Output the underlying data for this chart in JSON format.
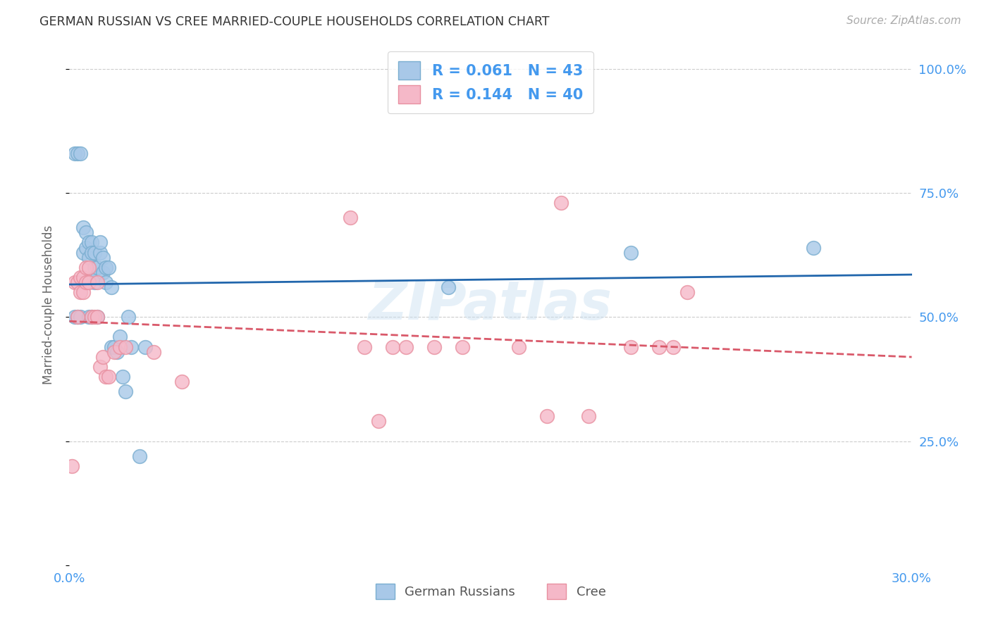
{
  "title": "GERMAN RUSSIAN VS CREE MARRIED-COUPLE HOUSEHOLDS CORRELATION CHART",
  "source": "Source: ZipAtlas.com",
  "ylabel": "Married-couple Households",
  "label_german": "German Russians",
  "label_cree": "Cree",
  "watermark": "ZIPatlas",
  "blue_scatter_color": "#a8c8e8",
  "blue_scatter_edge": "#7aaed0",
  "pink_scatter_color": "#f5b8c8",
  "pink_scatter_edge": "#e890a0",
  "blue_line_color": "#2166ac",
  "pink_line_color": "#d9596a",
  "background_color": "#ffffff",
  "grid_color": "#cccccc",
  "tick_color": "#4499ee",
  "legend_text_color": "#4499ee",
  "title_color": "#333333",
  "source_color": "#aaaaaa",
  "ylabel_color": "#666666",
  "blue_x": [
    0.002,
    0.003,
    0.004,
    0.005,
    0.005,
    0.006,
    0.006,
    0.007,
    0.007,
    0.008,
    0.008,
    0.009,
    0.009,
    0.009,
    0.01,
    0.01,
    0.011,
    0.011,
    0.012,
    0.012,
    0.013,
    0.013,
    0.014,
    0.015,
    0.015,
    0.016,
    0.017,
    0.018,
    0.019,
    0.02,
    0.021,
    0.022,
    0.025,
    0.027,
    0.002,
    0.003,
    0.004,
    0.007,
    0.008,
    0.01,
    0.135,
    0.2,
    0.265
  ],
  "blue_y": [
    0.83,
    0.83,
    0.83,
    0.68,
    0.63,
    0.64,
    0.67,
    0.65,
    0.62,
    0.65,
    0.63,
    0.63,
    0.6,
    0.57,
    0.58,
    0.6,
    0.63,
    0.65,
    0.59,
    0.62,
    0.57,
    0.6,
    0.6,
    0.56,
    0.44,
    0.44,
    0.43,
    0.46,
    0.38,
    0.35,
    0.5,
    0.44,
    0.22,
    0.44,
    0.5,
    0.5,
    0.5,
    0.5,
    0.5,
    0.5,
    0.56,
    0.63,
    0.64
  ],
  "pink_x": [
    0.001,
    0.002,
    0.003,
    0.003,
    0.004,
    0.004,
    0.005,
    0.005,
    0.006,
    0.006,
    0.007,
    0.007,
    0.008,
    0.009,
    0.01,
    0.01,
    0.011,
    0.012,
    0.013,
    0.014,
    0.016,
    0.018,
    0.02,
    0.03,
    0.04,
    0.1,
    0.105,
    0.11,
    0.115,
    0.12,
    0.13,
    0.14,
    0.16,
    0.17,
    0.175,
    0.185,
    0.2,
    0.21,
    0.215,
    0.22
  ],
  "pink_y": [
    0.2,
    0.57,
    0.5,
    0.57,
    0.55,
    0.58,
    0.55,
    0.58,
    0.57,
    0.6,
    0.57,
    0.6,
    0.5,
    0.5,
    0.5,
    0.57,
    0.4,
    0.42,
    0.38,
    0.38,
    0.43,
    0.44,
    0.44,
    0.43,
    0.37,
    0.7,
    0.44,
    0.29,
    0.44,
    0.44,
    0.44,
    0.44,
    0.44,
    0.3,
    0.73,
    0.3,
    0.44,
    0.44,
    0.44,
    0.55
  ]
}
